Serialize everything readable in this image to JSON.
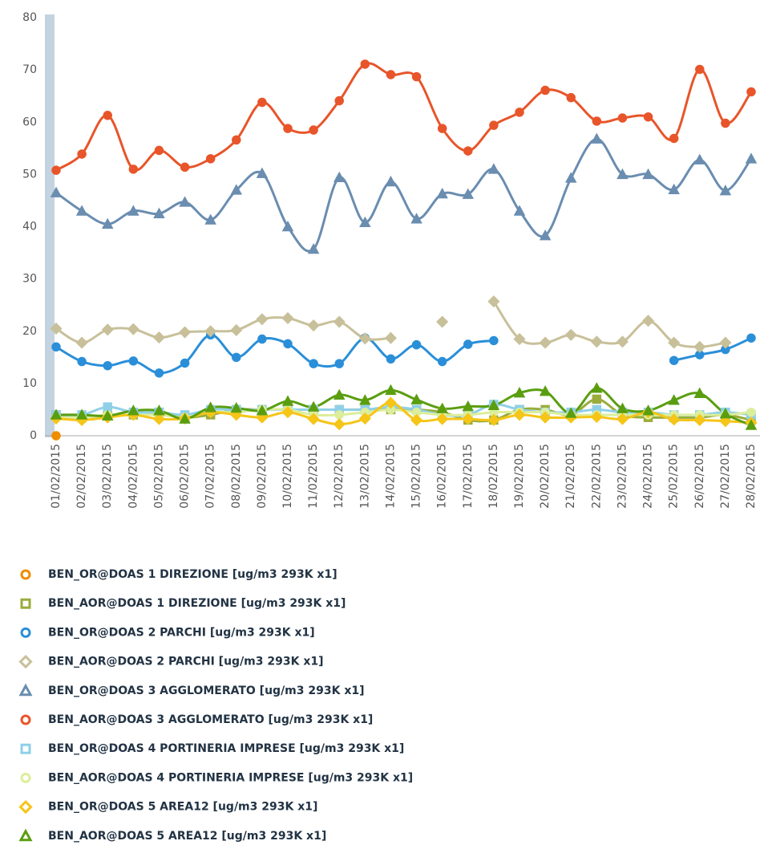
{
  "chart_data": {
    "type": "line",
    "categories": [
      "01/02/2015",
      "02/02/2015",
      "03/02/2015",
      "04/02/2015",
      "05/02/2015",
      "06/02/2015",
      "07/02/2015",
      "08/02/2015",
      "09/02/2015",
      "10/02/2015",
      "11/02/2015",
      "12/02/2015",
      "13/02/2015",
      "14/02/2015",
      "15/02/2015",
      "16/02/2015",
      "17/02/2015",
      "18/02/2015",
      "19/02/2015",
      "20/02/2015",
      "21/02/2015",
      "22/02/2015",
      "23/02/2015",
      "24/02/2015",
      "25/02/2015",
      "26/02/2015",
      "27/02/2015",
      "28/02/2015"
    ],
    "ylim": [
      0,
      80
    ],
    "yticks": [
      0,
      10,
      20,
      30,
      40,
      50,
      60,
      70,
      80
    ],
    "grid": false,
    "series": [
      {
        "name": "BEN_OR@DOAS 1 DIREZIONE [ug/m3 293K x1]",
        "color": "#f08c00",
        "marker": "circle",
        "values": [
          0,
          null,
          null,
          null,
          null,
          null,
          null,
          null,
          null,
          null,
          null,
          null,
          null,
          null,
          null,
          null,
          null,
          null,
          null,
          null,
          null,
          null,
          null,
          null,
          null,
          null,
          null,
          null
        ]
      },
      {
        "name": "BEN_AOR@DOAS 1 DIREZIONE [ug/m3 293K x1]",
        "color": "#9aac3c",
        "marker": "square",
        "values": [
          4,
          3.5,
          4,
          4,
          4.5,
          3.5,
          4,
          5,
          5,
          5,
          5,
          5,
          5,
          5,
          5,
          4.5,
          3,
          3,
          5,
          5,
          4,
          7,
          4,
          3.5,
          3.5,
          3.5,
          4,
          3
        ]
      },
      {
        "name": "BEN_OR@DOAS 2 PARCHI [ug/m3 293K x1]",
        "color": "#2a8fd8",
        "marker": "circle",
        "values": [
          17,
          14.2,
          13.4,
          14.3,
          12,
          13.9,
          19.3,
          15,
          18.5,
          17.6,
          13.8,
          13.8,
          18.7,
          14.7,
          17.4,
          14.2,
          17.5,
          18.2,
          null,
          null,
          null,
          null,
          null,
          null,
          14.4,
          15.5,
          16.5,
          18.7
        ]
      },
      {
        "name": "BEN_AOR@DOAS 2 PARCHI [ug/m3 293K x1]",
        "color": "#c8c09a",
        "marker": "diamond",
        "values": [
          20.5,
          17.8,
          20.3,
          20.4,
          18.8,
          19.8,
          20,
          20.2,
          22.3,
          22.5,
          21.1,
          21.8,
          18.6,
          18.7,
          null,
          21.8,
          null,
          25.7,
          18.5,
          17.8,
          19.3,
          18,
          18,
          22,
          17.8,
          17,
          17.8,
          null
        ]
      },
      {
        "name": "BEN_OR@DOAS 3 AGGLOMERATO [ug/m3 293K x1]",
        "color": "#6a8db0",
        "marker": "triangle",
        "values": [
          46.5,
          43,
          40.5,
          43,
          42.5,
          44.7,
          41.3,
          47,
          50.2,
          40,
          35.7,
          49.4,
          40.8,
          48.6,
          41.5,
          46.3,
          46.2,
          51,
          43,
          38.3,
          49.3,
          56.8,
          50,
          50,
          47.1,
          52.8,
          46.9,
          53
        ]
      },
      {
        "name": "BEN_AOR@DOAS 3 AGGLOMERATO [ug/m3 293K x1]",
        "color": "#e8552a",
        "marker": "circle",
        "values": [
          50.8,
          53.9,
          61.3,
          51,
          54.6,
          51.4,
          53,
          56.6,
          63.8,
          58.8,
          58.5,
          64.1,
          71.1,
          69.1,
          68.7,
          58.8,
          54.5,
          59.4,
          61.9,
          66.1,
          64.7,
          60.2,
          60.8,
          61,
          56.9,
          70.1,
          59.8,
          65.8
        ]
      },
      {
        "name": "BEN_OR@DOAS 4 PORTINERIA IMPRESE [ug/m3 293K x1]",
        "color": "#8fd0e8",
        "marker": "square",
        "values": [
          4,
          4,
          5.5,
          4.5,
          4.5,
          4,
          5,
          5,
          5,
          5,
          5,
          5,
          5,
          5.5,
          5,
          4,
          4,
          6,
          5,
          4.5,
          4.5,
          5,
          4.5,
          4.5,
          4,
          4,
          4.5,
          4
        ]
      },
      {
        "name": "BEN_AOR@DOAS 4 PORTINERIA IMPRESE [ug/m3 293K x1]",
        "color": "#dcee9a",
        "marker": "circle",
        "values": [
          3.5,
          3.5,
          4,
          4,
          4,
          3.5,
          4.5,
          4.5,
          5,
          5,
          4,
          4,
          4.5,
          5,
          4.5,
          4,
          4,
          4.5,
          4.5,
          4.5,
          4,
          4,
          4,
          4,
          4,
          4,
          4,
          4.5
        ]
      },
      {
        "name": "BEN_OR@DOAS 5 AREA12 [ug/m3 293K x1]",
        "color": "#f5c518",
        "marker": "diamond",
        "values": [
          3.3,
          3,
          3.5,
          4,
          3.2,
          3.3,
          4.5,
          4,
          3.5,
          4.5,
          3.2,
          2.2,
          3.3,
          6.3,
          3,
          3.2,
          3.2,
          3,
          4,
          3.5,
          3.5,
          3.6,
          3.2,
          4.5,
          3.1,
          3,
          2.8,
          2.5
        ]
      },
      {
        "name": "BEN_AOR@DOAS 5 AREA12 [ug/m3 293K x1]",
        "color": "#5a9e10",
        "marker": "triangle",
        "values": [
          4,
          4,
          3.8,
          4.8,
          4.8,
          3.2,
          5.4,
          5.3,
          4.8,
          6.6,
          5.5,
          7.8,
          6.8,
          8.7,
          6.9,
          5.2,
          5.6,
          5.8,
          8.2,
          8.5,
          4.3,
          9.1,
          5.2,
          4.8,
          6.8,
          8.1,
          4.2,
          2
        ]
      }
    ]
  }
}
